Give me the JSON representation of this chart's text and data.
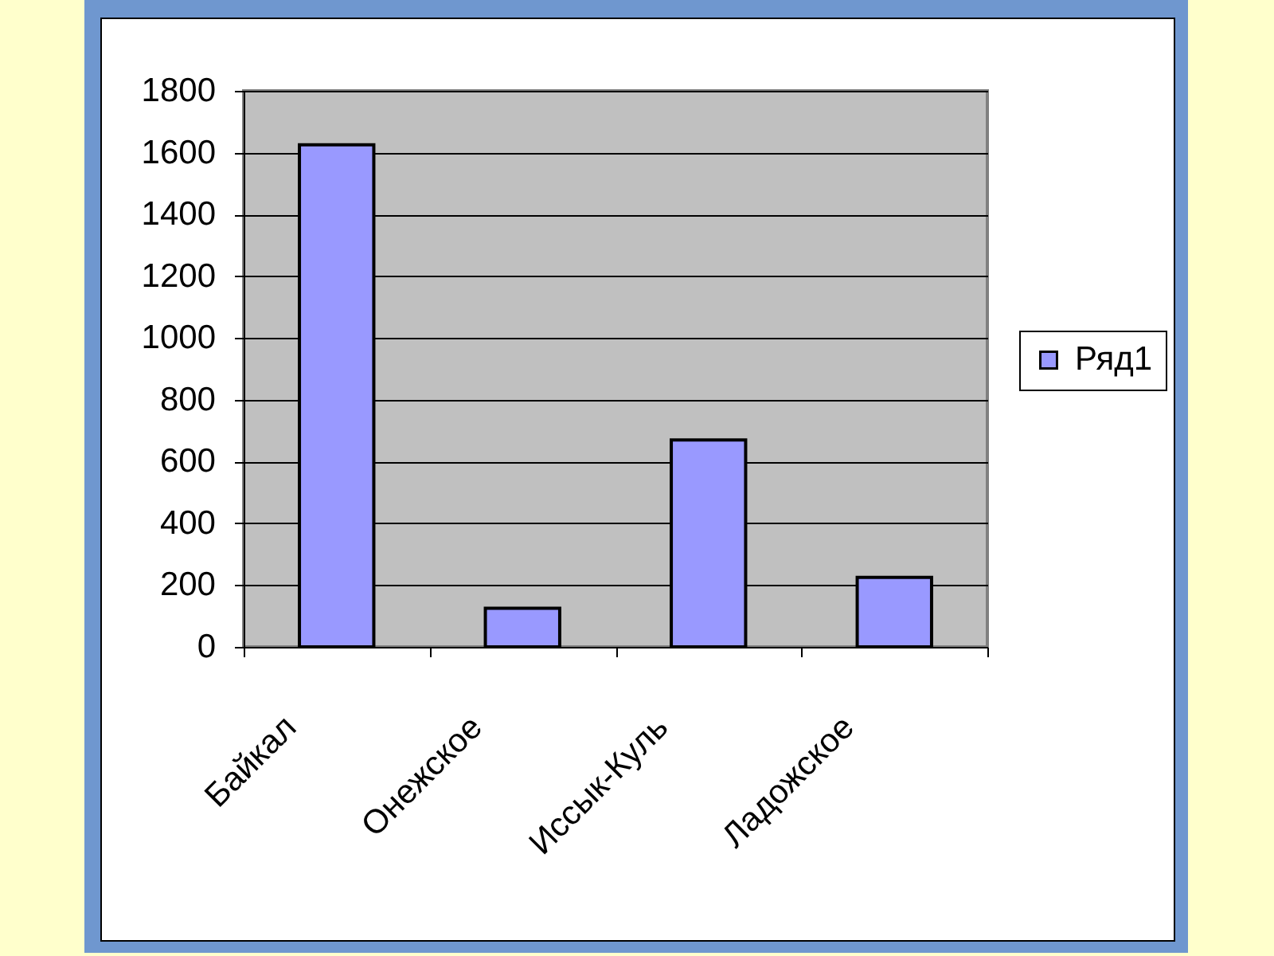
{
  "chart_data": {
    "type": "bar",
    "categories": [
      "Байкал",
      "Онежское",
      "Иссык-Куль",
      "Ладожское"
    ],
    "series": [
      {
        "name": "Ряд1",
        "color": "#9999ff",
        "values": [
          1625,
          125,
          670,
          225
        ]
      }
    ],
    "ylim": [
      0,
      1800
    ],
    "yticks": [
      0,
      200,
      400,
      600,
      800,
      1000,
      1200,
      1400,
      1600,
      1800
    ],
    "grid": "y",
    "legend": "right"
  }
}
